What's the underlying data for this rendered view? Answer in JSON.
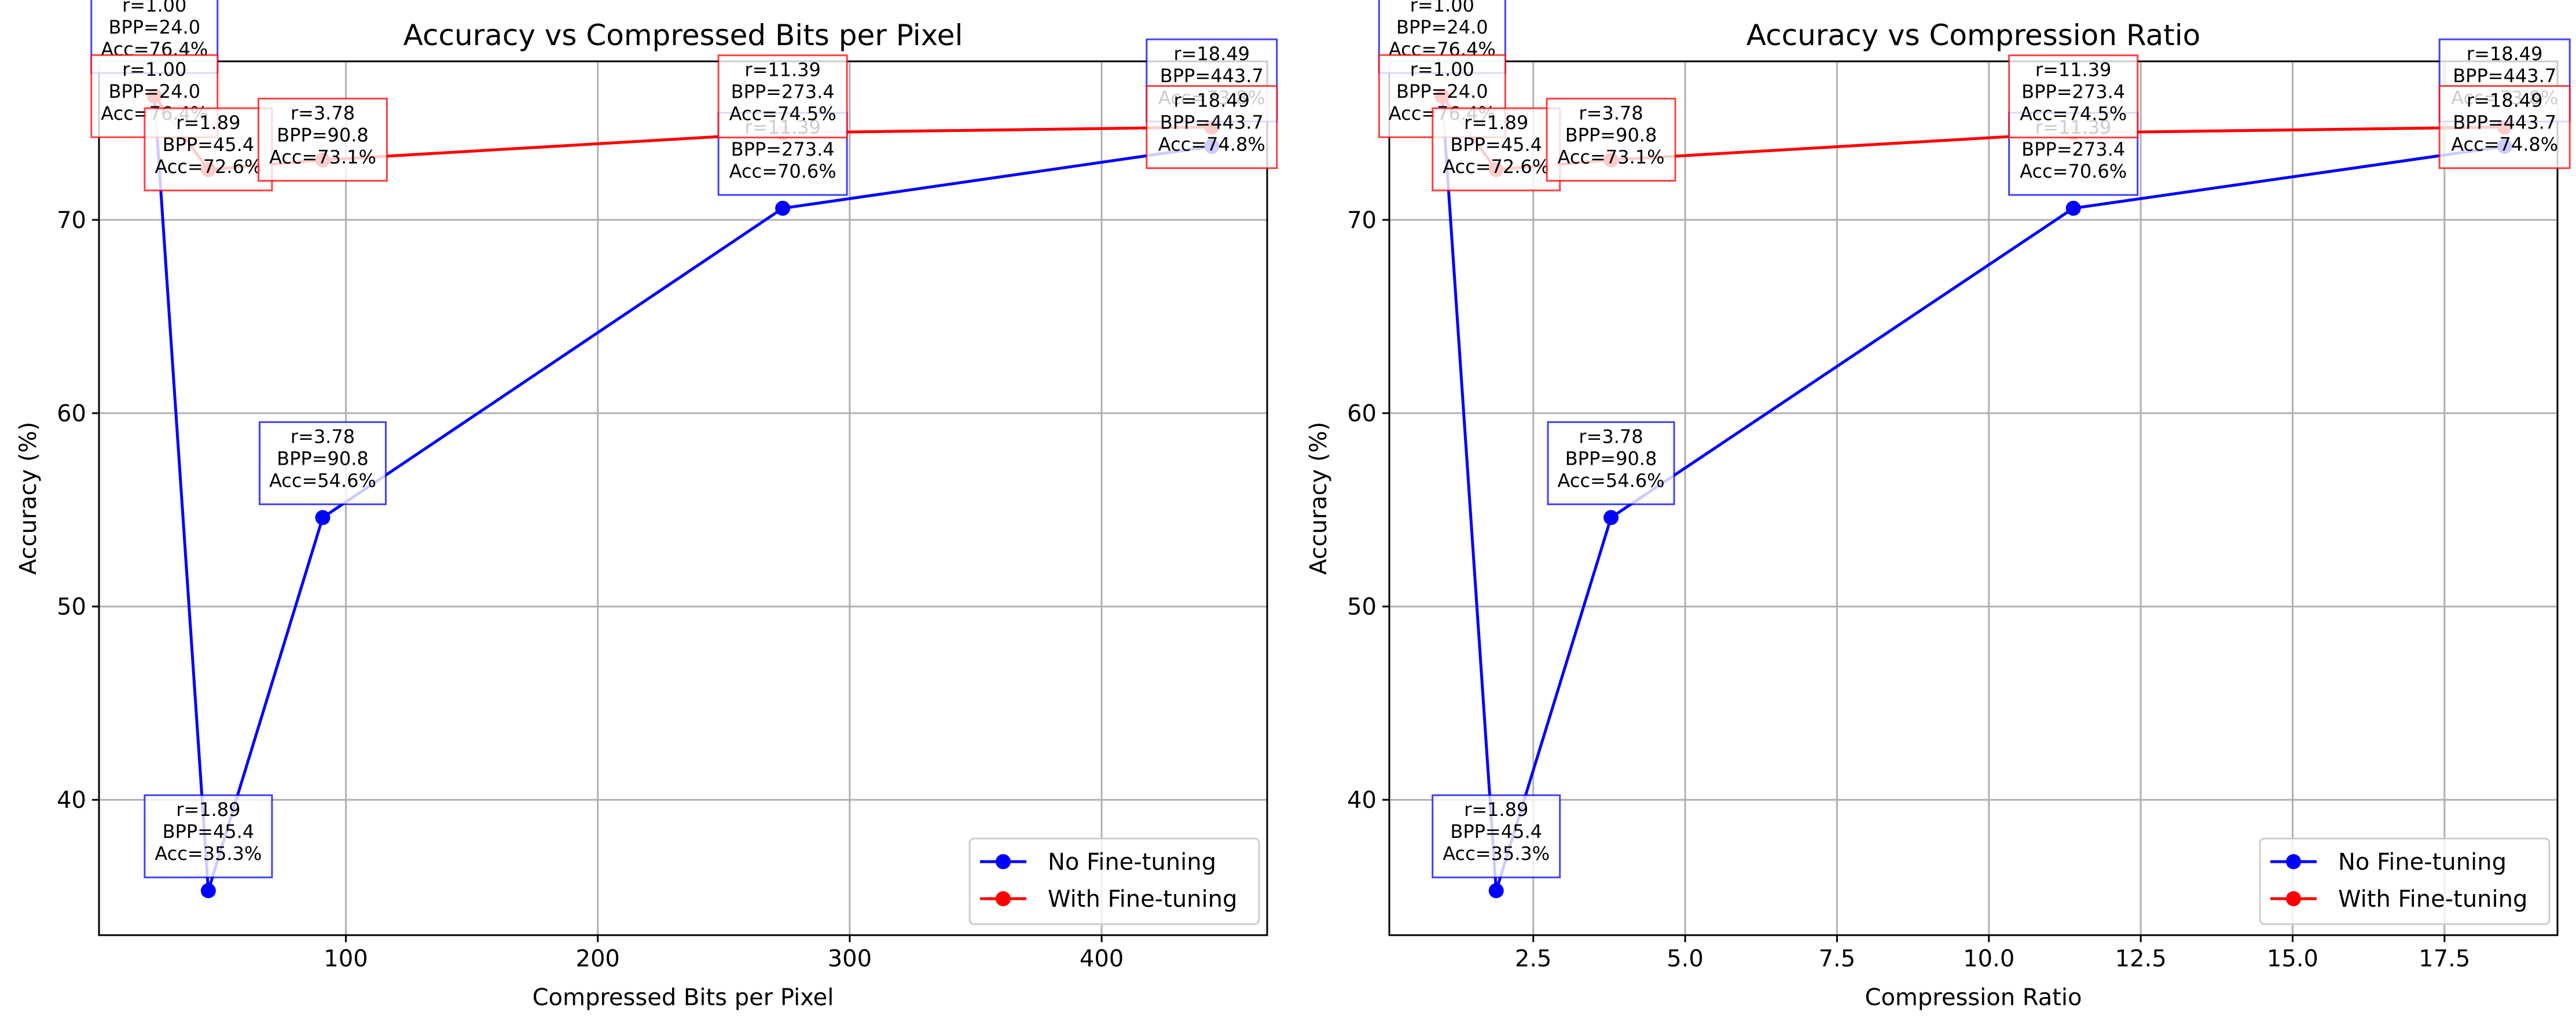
{
  "chart_data": [
    {
      "type": "line",
      "title": "Accuracy vs Compressed Bits per Pixel",
      "xlabel": "Compressed Bits per Pixel",
      "ylabel": "Accuracy (%)",
      "xlim": [
        2.0,
        465.7
      ],
      "ylim": [
        33.0,
        78.2
      ],
      "xticks": [
        100,
        200,
        300,
        400
      ],
      "xtick_labels": [
        "100",
        "200",
        "300",
        "400"
      ],
      "yticks": [
        40,
        50,
        60,
        70
      ],
      "ytick_labels": [
        "40",
        "50",
        "60",
        "70"
      ],
      "grid": true,
      "legend": "lower-right",
      "series": [
        {
          "name": "No Fine-tuning",
          "color": "#0000ff",
          "x": [
            24.0,
            45.4,
            90.8,
            273.4,
            443.7
          ],
          "y": [
            76.4,
            35.3,
            54.6,
            70.6,
            73.8
          ],
          "labels": [
            [
              "r=1.00",
              "BPP=24.0",
              "Acc=76.4%"
            ],
            [
              "r=1.89",
              "BPP=45.4",
              "Acc=35.3%"
            ],
            [
              "r=3.78",
              "BPP=90.8",
              "Acc=54.6%"
            ],
            [
              "r=11.39",
              "BPP=273.4",
              "Acc=70.6%"
            ],
            [
              "r=18.49",
              "BPP=443.7",
              "Acc=73.8%"
            ]
          ]
        },
        {
          "name": "With Fine-tuning",
          "color": "#ff0000",
          "x": [
            24.0,
            45.4,
            90.8,
            273.4,
            443.7
          ],
          "y": [
            76.4,
            72.6,
            73.1,
            74.5,
            74.8
          ],
          "labels": [
            [
              "r=1.00",
              "BPP=24.0",
              "Acc=76.4%"
            ],
            [
              "r=1.89",
              "BPP=45.4",
              "Acc=72.6%"
            ],
            [
              "r=3.78",
              "BPP=90.8",
              "Acc=73.1%"
            ],
            [
              "r=11.39",
              "BPP=273.4",
              "Acc=74.5%"
            ],
            [
              "r=18.49",
              "BPP=443.7",
              "Acc=74.8%"
            ]
          ]
        }
      ]
    },
    {
      "type": "line",
      "title": "Accuracy vs Compression Ratio",
      "xlabel": "Compression Ratio",
      "ylabel": "Accuracy (%)",
      "xlim": [
        0.13,
        19.36
      ],
      "ylim": [
        33.0,
        78.2
      ],
      "xticks": [
        2.5,
        5.0,
        7.5,
        10.0,
        12.5,
        15.0,
        17.5
      ],
      "xtick_labels": [
        "2.5",
        "5.0",
        "7.5",
        "10.0",
        "12.5",
        "15.0",
        "17.5"
      ],
      "yticks": [
        40,
        50,
        60,
        70
      ],
      "ytick_labels": [
        "40",
        "50",
        "60",
        "70"
      ],
      "grid": true,
      "legend": "lower-right",
      "series": [
        {
          "name": "No Fine-tuning",
          "color": "#0000ff",
          "x": [
            1.0,
            1.89,
            3.78,
            11.39,
            18.49
          ],
          "y": [
            76.4,
            35.3,
            54.6,
            70.6,
            73.8
          ],
          "labels": [
            [
              "r=1.00",
              "BPP=24.0",
              "Acc=76.4%"
            ],
            [
              "r=1.89",
              "BPP=45.4",
              "Acc=35.3%"
            ],
            [
              "r=3.78",
              "BPP=90.8",
              "Acc=54.6%"
            ],
            [
              "r=11.39",
              "BPP=273.4",
              "Acc=70.6%"
            ],
            [
              "r=18.49",
              "BPP=443.7",
              "Acc=73.8%"
            ]
          ]
        },
        {
          "name": "With Fine-tuning",
          "color": "#ff0000",
          "x": [
            1.0,
            1.89,
            3.78,
            11.39,
            18.49
          ],
          "y": [
            76.4,
            72.6,
            73.1,
            74.5,
            74.8
          ],
          "labels": [
            [
              "r=1.00",
              "BPP=24.0",
              "Acc=76.4%"
            ],
            [
              "r=1.89",
              "BPP=45.4",
              "Acc=72.6%"
            ],
            [
              "r=3.78",
              "BPP=90.8",
              "Acc=73.1%"
            ],
            [
              "r=11.39",
              "BPP=273.4",
              "Acc=74.5%"
            ],
            [
              "r=18.49",
              "BPP=443.7",
              "Acc=74.8%"
            ]
          ]
        }
      ]
    }
  ]
}
